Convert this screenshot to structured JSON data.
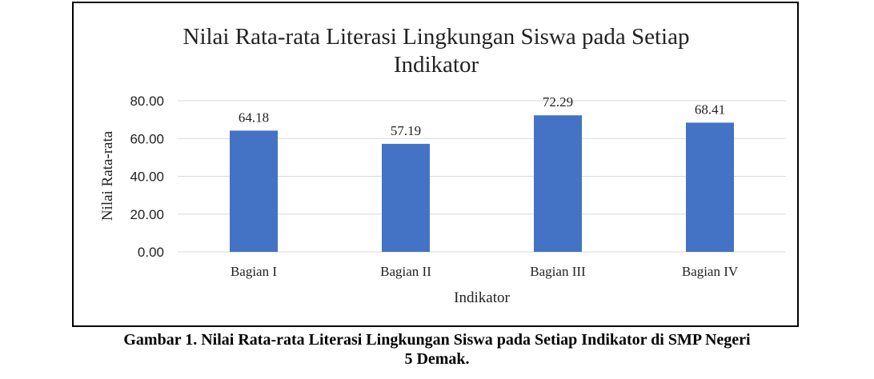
{
  "chart_data": {
    "type": "bar",
    "title_lines": [
      "Nilai Rata-rata  Literasi Lingkungan Siswa pada Setiap",
      "Indikator"
    ],
    "categories": [
      "Bagian I",
      "Bagian II",
      "Bagian III",
      "Bagian IV"
    ],
    "values": [
      64.18,
      57.19,
      72.29,
      68.41
    ],
    "data_labels": [
      "64.18",
      "57.19",
      "72.29",
      "68.41"
    ],
    "xlabel": "Indikator",
    "ylabel": "Nilai Rata-rata",
    "ylim": [
      0,
      80
    ],
    "yticks": [
      0,
      20,
      40,
      60,
      80
    ],
    "ytick_labels": [
      "0.00",
      "20.00",
      "40.00",
      "60.00",
      "80.00"
    ],
    "grid": true,
    "bar_color": "#4472C4",
    "grid_color": "#D9D9D9"
  },
  "caption": {
    "line1": "Gambar 1. Nilai Rata-rata Literasi Lingkungan Siswa pada Setiap Indikator di SMP Negeri",
    "line2": "5 Demak."
  }
}
